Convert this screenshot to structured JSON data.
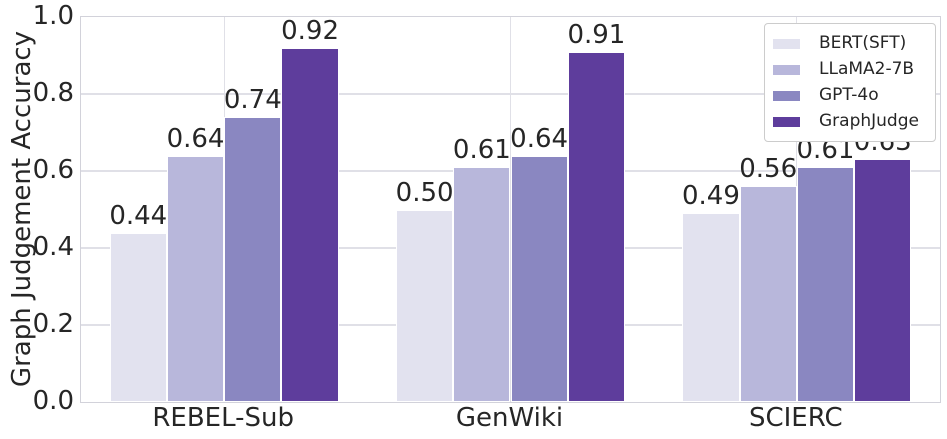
{
  "chart_data": {
    "type": "bar",
    "title": "",
    "xlabel": "",
    "ylabel": "Graph Judgement Accuracy",
    "categories": [
      "REBEL-Sub",
      "GenWiki",
      "SCIERC"
    ],
    "series": [
      {
        "name": "BERT(SFT)",
        "color": "#e2e2ef",
        "values": [
          0.44,
          0.5,
          0.49
        ]
      },
      {
        "name": "LLaMA2-7B",
        "color": "#b8b7db",
        "values": [
          0.64,
          0.61,
          0.56
        ]
      },
      {
        "name": "GPT-4o",
        "color": "#8a87c1",
        "values": [
          0.74,
          0.64,
          0.61
        ]
      },
      {
        "name": "GraphJudge",
        "color": "#5e3d9c",
        "values": [
          0.92,
          0.91,
          0.63
        ]
      }
    ],
    "bar_value_labels": [
      [
        "0.44",
        "0.64",
        "0.74",
        "0.92"
      ],
      [
        "0.50",
        "0.61",
        "0.64",
        "0.91"
      ],
      [
        "0.49",
        "0.56",
        "0.61",
        "0.63"
      ]
    ],
    "ylim": [
      0.0,
      1.0
    ],
    "yticks": [
      0.0,
      0.2,
      0.4,
      0.6,
      0.8,
      1.0
    ],
    "ytick_labels": [
      "0.0",
      "0.2",
      "0.4",
      "0.6",
      "0.8",
      "1.0"
    ],
    "grid": "both",
    "legend_position": "upper-right",
    "bar_group_width_fraction": 0.8
  },
  "colors": {
    "text": "#262626",
    "grid": "#e0e0e7",
    "spine": "#d2d2da",
    "background": "#ffffff",
    "legend_border": "#cccccc",
    "bar_edge": "#ffffff"
  }
}
